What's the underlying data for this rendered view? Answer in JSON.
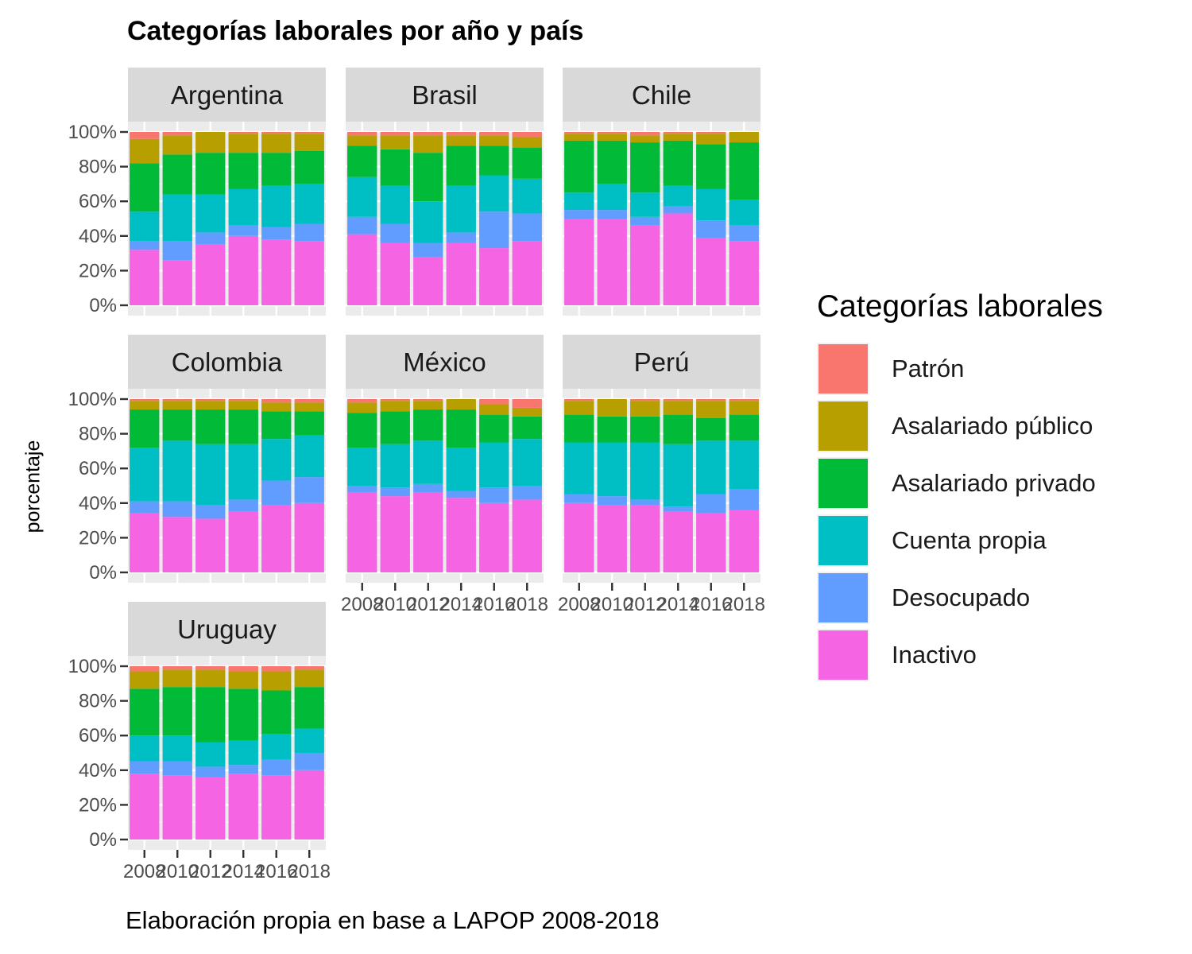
{
  "chart_data": {
    "type": "bar",
    "title": "Categorías laborales por año y país",
    "ylabel": "porcentaje",
    "caption": "Elaboración propia en base a LAPOP 2008-2018",
    "legend_title": "Categorías laborales",
    "legend_position": "right",
    "ylim": [
      0,
      1
    ],
    "y_ticks": [
      "0%",
      "20%",
      "40%",
      "60%",
      "80%",
      "100%"
    ],
    "categories": [
      "2008",
      "2010",
      "2012",
      "2014",
      "2016",
      "2018"
    ],
    "stack_order_top_to_bottom": [
      "Patrón",
      "Asalariado público",
      "Asalariado privado",
      "Cuenta propia",
      "Desocupado",
      "Inactivo"
    ],
    "colors": {
      "Patrón": "#F8766D",
      "Asalariado público": "#B79F00",
      "Asalariado privado": "#00BA38",
      "Cuenta propia": "#00BFC4",
      "Desocupado": "#619CFF",
      "Inactivo": "#F564E3"
    },
    "panels": [
      {
        "name": "Argentina",
        "series": [
          {
            "name": "Inactivo",
            "values": [
              0.32,
              0.26,
              0.35,
              0.4,
              0.38,
              0.37
            ]
          },
          {
            "name": "Desocupado",
            "values": [
              0.05,
              0.11,
              0.07,
              0.06,
              0.07,
              0.1
            ]
          },
          {
            "name": "Cuenta propia",
            "values": [
              0.17,
              0.27,
              0.22,
              0.21,
              0.24,
              0.23
            ]
          },
          {
            "name": "Asalariado privado",
            "values": [
              0.28,
              0.23,
              0.24,
              0.21,
              0.19,
              0.19
            ]
          },
          {
            "name": "Asalariado público",
            "values": [
              0.14,
              0.11,
              0.12,
              0.11,
              0.11,
              0.1
            ]
          },
          {
            "name": "Patrón",
            "values": [
              0.04,
              0.02,
              0.0,
              0.01,
              0.01,
              0.01
            ]
          }
        ]
      },
      {
        "name": "Brasil",
        "series": [
          {
            "name": "Inactivo",
            "values": [
              0.41,
              0.36,
              0.28,
              0.36,
              0.33,
              0.37
            ]
          },
          {
            "name": "Desocupado",
            "values": [
              0.1,
              0.11,
              0.08,
              0.06,
              0.21,
              0.16
            ]
          },
          {
            "name": "Cuenta propia",
            "values": [
              0.23,
              0.22,
              0.24,
              0.27,
              0.21,
              0.2
            ]
          },
          {
            "name": "Asalariado privado",
            "values": [
              0.18,
              0.21,
              0.28,
              0.23,
              0.17,
              0.18
            ]
          },
          {
            "name": "Asalariado público",
            "values": [
              0.06,
              0.08,
              0.1,
              0.06,
              0.06,
              0.06
            ]
          },
          {
            "name": "Patrón",
            "values": [
              0.02,
              0.02,
              0.02,
              0.02,
              0.02,
              0.03
            ]
          }
        ]
      },
      {
        "name": "Chile",
        "series": [
          {
            "name": "Inactivo",
            "values": [
              0.5,
              0.5,
              0.46,
              0.53,
              0.39,
              0.37
            ]
          },
          {
            "name": "Desocupado",
            "values": [
              0.05,
              0.05,
              0.05,
              0.04,
              0.1,
              0.09
            ]
          },
          {
            "name": "Cuenta propia",
            "values": [
              0.1,
              0.15,
              0.14,
              0.12,
              0.18,
              0.15
            ]
          },
          {
            "name": "Asalariado privado",
            "values": [
              0.3,
              0.25,
              0.29,
              0.26,
              0.26,
              0.33
            ]
          },
          {
            "name": "Asalariado público",
            "values": [
              0.04,
              0.04,
              0.04,
              0.04,
              0.06,
              0.06
            ]
          },
          {
            "name": "Patrón",
            "values": [
              0.01,
              0.01,
              0.02,
              0.01,
              0.01,
              0.0
            ]
          }
        ]
      },
      {
        "name": "Colombia",
        "series": [
          {
            "name": "Inactivo",
            "values": [
              0.34,
              0.32,
              0.31,
              0.35,
              0.39,
              0.4
            ]
          },
          {
            "name": "Desocupado",
            "values": [
              0.07,
              0.09,
              0.08,
              0.07,
              0.14,
              0.15
            ]
          },
          {
            "name": "Cuenta propia",
            "values": [
              0.31,
              0.35,
              0.35,
              0.32,
              0.24,
              0.24
            ]
          },
          {
            "name": "Asalariado privado",
            "values": [
              0.22,
              0.18,
              0.2,
              0.2,
              0.16,
              0.14
            ]
          },
          {
            "name": "Asalariado público",
            "values": [
              0.05,
              0.05,
              0.05,
              0.05,
              0.05,
              0.05
            ]
          },
          {
            "name": "Patrón",
            "values": [
              0.01,
              0.01,
              0.01,
              0.01,
              0.02,
              0.02
            ]
          }
        ]
      },
      {
        "name": "México",
        "series": [
          {
            "name": "Inactivo",
            "values": [
              0.46,
              0.44,
              0.46,
              0.43,
              0.4,
              0.42
            ]
          },
          {
            "name": "Desocupado",
            "values": [
              0.04,
              0.05,
              0.05,
              0.04,
              0.09,
              0.08
            ]
          },
          {
            "name": "Cuenta propia",
            "values": [
              0.22,
              0.25,
              0.25,
              0.25,
              0.26,
              0.27
            ]
          },
          {
            "name": "Asalariado privado",
            "values": [
              0.2,
              0.19,
              0.18,
              0.22,
              0.16,
              0.13
            ]
          },
          {
            "name": "Asalariado público",
            "values": [
              0.06,
              0.06,
              0.05,
              0.06,
              0.06,
              0.05
            ]
          },
          {
            "name": "Patrón",
            "values": [
              0.02,
              0.01,
              0.01,
              0.0,
              0.03,
              0.05
            ]
          }
        ]
      },
      {
        "name": "Perú",
        "series": [
          {
            "name": "Inactivo",
            "values": [
              0.4,
              0.39,
              0.39,
              0.35,
              0.34,
              0.36
            ]
          },
          {
            "name": "Desocupado",
            "values": [
              0.05,
              0.05,
              0.03,
              0.03,
              0.11,
              0.12
            ]
          },
          {
            "name": "Cuenta propia",
            "values": [
              0.3,
              0.31,
              0.33,
              0.36,
              0.31,
              0.28
            ]
          },
          {
            "name": "Asalariado privado",
            "values": [
              0.16,
              0.15,
              0.15,
              0.17,
              0.13,
              0.15
            ]
          },
          {
            "name": "Asalariado público",
            "values": [
              0.08,
              0.1,
              0.09,
              0.08,
              0.1,
              0.08
            ]
          },
          {
            "name": "Patrón",
            "values": [
              0.01,
              0.0,
              0.01,
              0.01,
              0.01,
              0.01
            ]
          }
        ]
      },
      {
        "name": "Uruguay",
        "series": [
          {
            "name": "Inactivo",
            "values": [
              0.38,
              0.37,
              0.36,
              0.38,
              0.37,
              0.4
            ]
          },
          {
            "name": "Desocupado",
            "values": [
              0.07,
              0.08,
              0.06,
              0.05,
              0.09,
              0.1
            ]
          },
          {
            "name": "Cuenta propia",
            "values": [
              0.15,
              0.15,
              0.14,
              0.14,
              0.15,
              0.14
            ]
          },
          {
            "name": "Asalariado privado",
            "values": [
              0.27,
              0.28,
              0.32,
              0.3,
              0.25,
              0.24
            ]
          },
          {
            "name": "Asalariado público",
            "values": [
              0.1,
              0.1,
              0.1,
              0.1,
              0.11,
              0.1
            ]
          },
          {
            "name": "Patrón",
            "values": [
              0.03,
              0.02,
              0.02,
              0.03,
              0.03,
              0.02
            ]
          }
        ]
      }
    ]
  }
}
